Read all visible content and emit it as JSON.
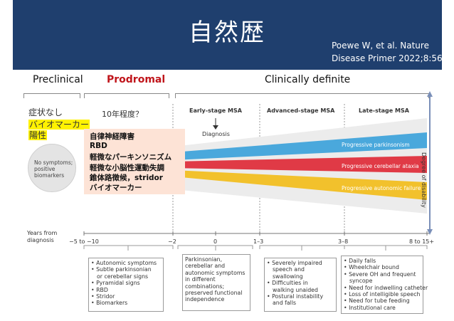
{
  "title": "自然歴",
  "citation": {
    "line1": "Poewe W, et al. Nature",
    "line2": "Disease Primer 2022;8:56."
  },
  "phases": {
    "preclinical": "Preclinical",
    "prodromal": "Prodromal",
    "clinical": "Clinically definite"
  },
  "notes": {
    "no_symptoms": "症状なし",
    "biomarker": "バイオマーカー",
    "positive": "陽性",
    "duration": "10年程度？"
  },
  "prodromal_box": [
    "自律神経障害",
    "RBD",
    "軽微なパーキンソニズム",
    "軽微な小脳性運動失調",
    "錐体路徴候，stridor",
    "バイオマーカー"
  ],
  "stages": {
    "early": "Early-stage MSA",
    "advanced": "Advanced-stage MSA",
    "late": "Late-stage MSA",
    "diagnosis": "Diagnosis"
  },
  "circle": {
    "line1": "No symptoms;",
    "line2": "positive",
    "line3": "biomarkers"
  },
  "bands": {
    "parkinsonism": "Progressive parkinsonism",
    "ataxia": "Progressive cerebellar ataxia",
    "autonomic": "Progressive autonomic failure",
    "colors": {
      "blue": "#4aa8dc",
      "red": "#e03a46",
      "yellow": "#f2c12c"
    }
  },
  "y_axis_label": "Degree of disability",
  "x_axis": {
    "label_line1": "Years from",
    "label_line2": "diagnosis",
    "ticks": [
      "−5 to −10",
      "−2",
      "0",
      "1–3",
      "3–8",
      "8 to 15+"
    ]
  },
  "boxes": {
    "prodromal": [
      "Autonomic symptoms",
      "Subtle parkinsonian",
      "or cerebellar signs",
      "Pyramidal signs",
      "RBD",
      "Stridor",
      "Biomarkers"
    ],
    "early": [
      "Parkinsonian,",
      "cerebellar and",
      "autonomic symptoms",
      "in different",
      "combinations;",
      "preserved functional",
      "independence"
    ],
    "advanced": [
      "Severely impaired",
      "speech and",
      "swallowing",
      "Difficulties in",
      "walking unaided",
      "Postural instability",
      "and falls"
    ],
    "late": [
      "Daily falls",
      "Wheelchair bound",
      "Severe OH and frequent",
      "syncope",
      "Need for indwelling catheter",
      "Loss of intelligible speech",
      "Need for tube feeding",
      "Institutional care"
    ]
  }
}
